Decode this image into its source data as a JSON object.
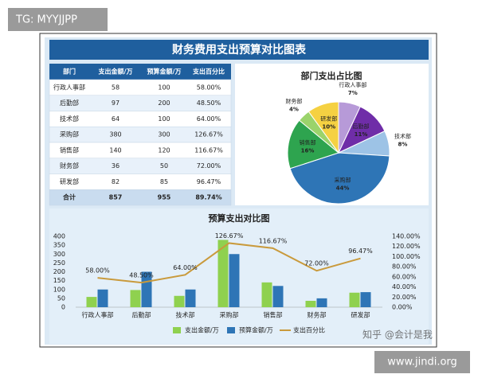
{
  "watermarks": {
    "top_left": "TG: MYYJJPP",
    "overlay": "知乎 @会计是我",
    "bottom_right": "www.jindi.org"
  },
  "header": {
    "title": "财务费用支出预算对比图表"
  },
  "table": {
    "columns": [
      "部门",
      "支出金额/万",
      "预算金额/万",
      "支出百分比"
    ],
    "rows": [
      [
        "行政人事部",
        "58",
        "100",
        "58.00%"
      ],
      [
        "后勤部",
        "97",
        "200",
        "48.50%"
      ],
      [
        "技术部",
        "64",
        "100",
        "64.00%"
      ],
      [
        "采购部",
        "380",
        "300",
        "126.67%"
      ],
      [
        "销售部",
        "140",
        "120",
        "116.67%"
      ],
      [
        "财务部",
        "36",
        "50",
        "72.00%"
      ],
      [
        "研发部",
        "82",
        "85",
        "96.47%"
      ],
      [
        "合计",
        "857",
        "955",
        "89.74%"
      ]
    ]
  },
  "chart_data": [
    {
      "type": "pie",
      "title": "部门支出占比图",
      "categories": [
        "行政人事部",
        "后勤部",
        "技术部",
        "采购部",
        "销售部",
        "财务部",
        "研发部"
      ],
      "values": [
        7,
        11,
        8,
        44,
        16,
        4,
        10
      ],
      "value_labels": [
        "7%",
        "11%",
        "8%",
        "44%",
        "16%",
        "4%",
        "10%"
      ],
      "colors": [
        "#b79ad8",
        "#6f2da8",
        "#9dc3e6",
        "#2e75b6",
        "#2ea44f",
        "#9bd36b",
        "#f5d142"
      ]
    },
    {
      "type": "combo",
      "title": "预算支出对比图",
      "categories": [
        "行政人事部",
        "后勤部",
        "技术部",
        "采购部",
        "销售部",
        "财务部",
        "研发部"
      ],
      "series": [
        {
          "name": "支出金额/万",
          "type": "bar",
          "color": "#8fd14f",
          "values": [
            58,
            97,
            64,
            380,
            140,
            36,
            82
          ]
        },
        {
          "name": "预算金额/万",
          "type": "bar",
          "color": "#2e75b6",
          "values": [
            100,
            200,
            100,
            300,
            120,
            50,
            85
          ]
        },
        {
          "name": "支出百分比",
          "type": "line",
          "axis": "y2",
          "color": "#c99a3c",
          "values": [
            58,
            48.5,
            64,
            126.67,
            116.67,
            72,
            96.47
          ],
          "value_labels": [
            "58.00%",
            "48.50%",
            "64.00%",
            "126.67%",
            "116.67%",
            "72.00%",
            "96.47%"
          ]
        }
      ],
      "ylim": [
        0,
        400
      ],
      "yticks": [
        0,
        50,
        100,
        150,
        200,
        250,
        300,
        350,
        400
      ],
      "y2lim": [
        0,
        140
      ],
      "y2ticks": [
        {
          "value": 0,
          "label": "0.00%"
        },
        {
          "value": 20,
          "label": "20.00%"
        },
        {
          "value": 40,
          "label": "40.00%"
        },
        {
          "value": 60,
          "label": "60.00%"
        },
        {
          "value": 80,
          "label": "80.00%"
        },
        {
          "value": 100,
          "label": "100.00%"
        },
        {
          "value": 120,
          "label": "120.00%"
        },
        {
          "value": 140,
          "label": "140.00%"
        }
      ],
      "legend": "bottom"
    }
  ]
}
